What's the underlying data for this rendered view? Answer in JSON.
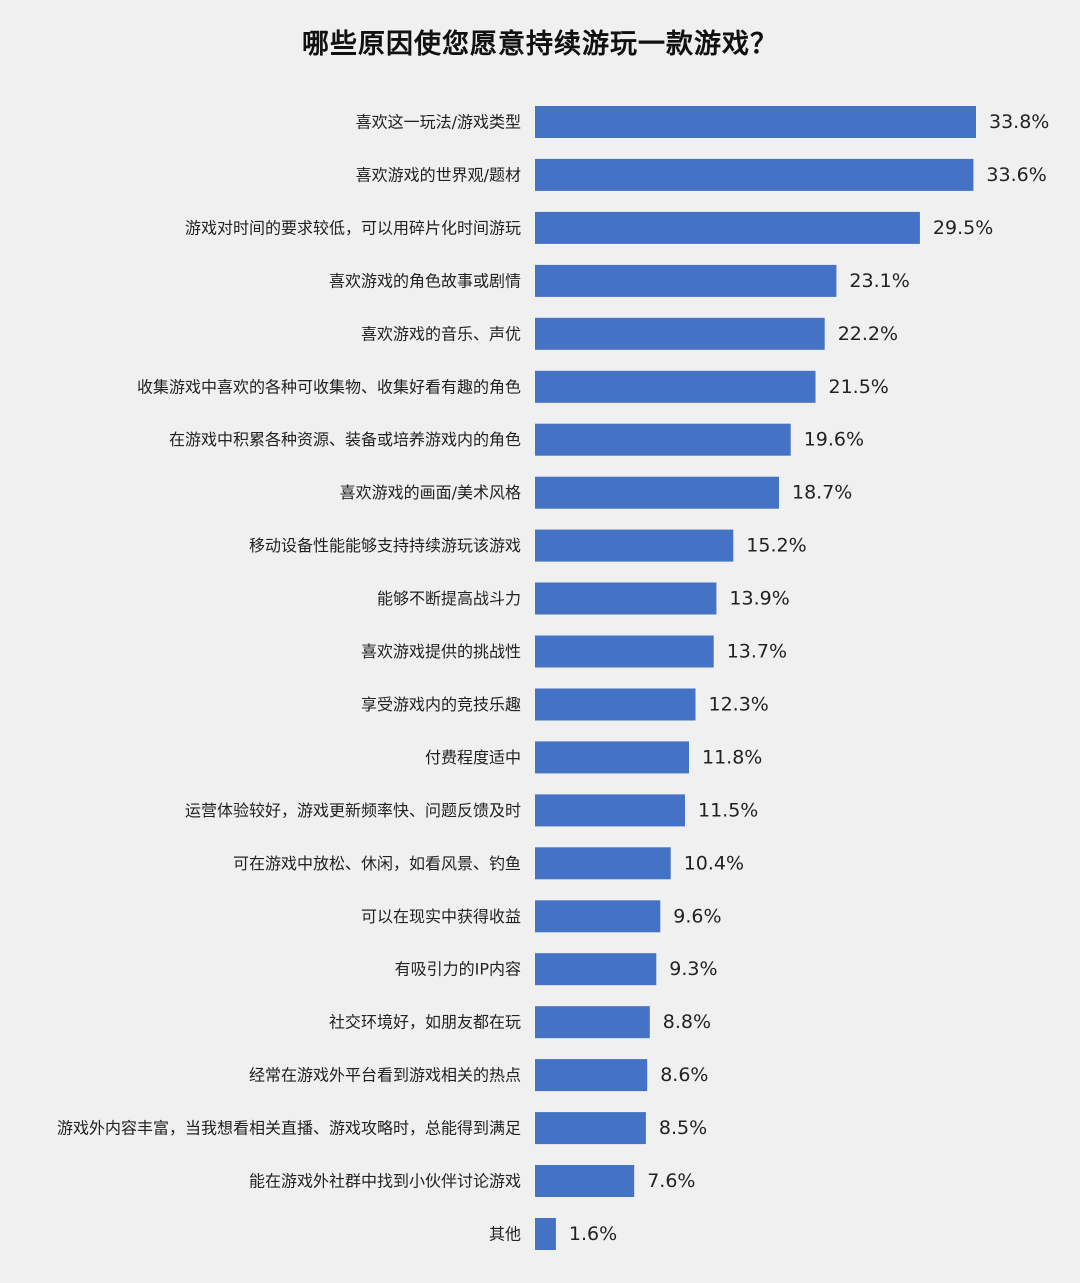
{
  "chart_data": {
    "type": "bar",
    "orientation": "horizontal",
    "title": "哪些原因使您愿意持续游玩一款游戏？",
    "categories": [
      "喜欢这一玩法/游戏类型",
      "喜欢游戏的世界观/题材",
      "游戏对时间的要求较低，可以用碎片化时间游玩",
      "喜欢游戏的角色故事或剧情",
      "喜欢游戏的音乐、声优",
      "收集游戏中喜欢的各种可收集物、收集好看有趣的角色",
      "在游戏中积累各种资源、装备或培养游戏内的角色",
      "喜欢游戏的画面/美术风格",
      "移动设备性能能够支持持续游玩该游戏",
      "能够不断提高战斗力",
      "喜欢游戏提供的挑战性",
      "享受游戏内的竞技乐趣",
      "付费程度适中",
      "运营体验较好，游戏更新频率快、问题反馈及时",
      "可在游戏中放松、休闲，如看风景、钓鱼",
      "可以在现实中获得收益",
      "有吸引力的IP内容",
      "社交环境好，如朋友都在玩",
      "经常在游戏外平台看到游戏相关的热点",
      "游戏外内容丰富，当我想看相关直播、游戏攻略时，总能得到满足",
      "能在游戏外社群中找到小伙伴讨论游戏",
      "其他"
    ],
    "values": [
      33.8,
      33.6,
      29.5,
      23.1,
      22.2,
      21.5,
      19.6,
      18.7,
      15.2,
      13.9,
      13.7,
      12.3,
      11.8,
      11.5,
      10.4,
      9.6,
      9.3,
      8.8,
      8.6,
      8.5,
      7.6,
      1.6
    ],
    "value_labels": [
      "33.8%",
      "33.6%",
      "29.5%",
      "23.1%",
      "22.2%",
      "21.5%",
      "19.6%",
      "18.7%",
      "15.2%",
      "13.9%",
      "13.7%",
      "12.3%",
      "11.8%",
      "11.5%",
      "10.4%",
      "9.6%",
      "9.3%",
      "8.8%",
      "8.6%",
      "8.5%",
      "7.6%",
      "1.6%"
    ],
    "unit": "%",
    "xlim": [
      0,
      33.8
    ],
    "grid": false,
    "legend": "none",
    "bar_color": "#4472c4",
    "background_color": "#f0f0f0"
  }
}
